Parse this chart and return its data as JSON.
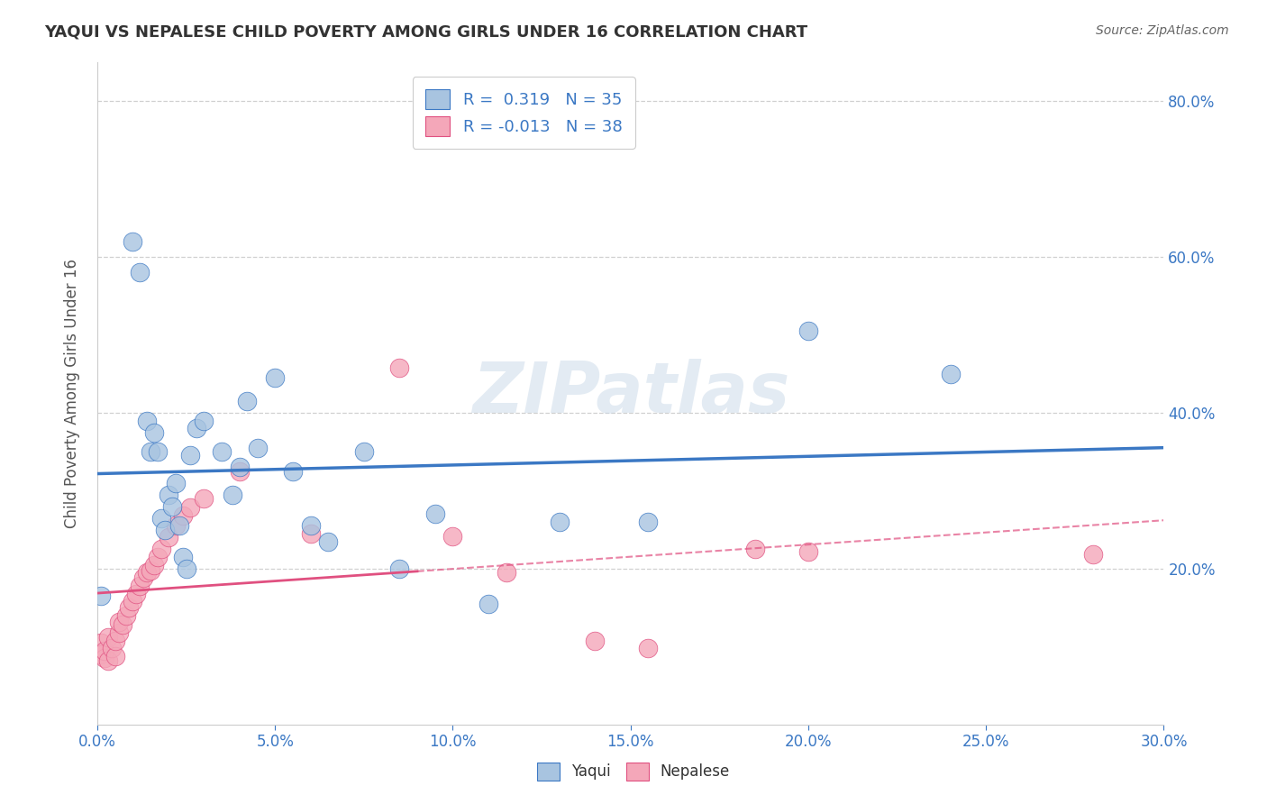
{
  "title": "YAQUI VS NEPALESE CHILD POVERTY AMONG GIRLS UNDER 16 CORRELATION CHART",
  "source": "Source: ZipAtlas.com",
  "ylabel": "Child Poverty Among Girls Under 16",
  "xlim": [
    0.0,
    0.3
  ],
  "ylim": [
    0.0,
    0.85
  ],
  "xticks": [
    0.0,
    0.05,
    0.1,
    0.15,
    0.2,
    0.25,
    0.3
  ],
  "yticks": [
    0.2,
    0.4,
    0.6,
    0.8
  ],
  "ytick_labels": [
    "20.0%",
    "40.0%",
    "60.0%",
    "80.0%"
  ],
  "xtick_labels": [
    "0.0%",
    "5.0%",
    "10.0%",
    "15.0%",
    "20.0%",
    "25.0%",
    "30.0%"
  ],
  "watermark": "ZIPatlas",
  "yaqui_color": "#a8c4e0",
  "nepalese_color": "#f4a7b9",
  "yaqui_line_color": "#3b78c4",
  "nepalese_line_color": "#e05080",
  "grid_color": "#d0d0d0",
  "background_color": "#ffffff",
  "yaqui_scatter_x": [
    0.001,
    0.01,
    0.012,
    0.014,
    0.015,
    0.016,
    0.017,
    0.018,
    0.019,
    0.02,
    0.021,
    0.022,
    0.023,
    0.024,
    0.025,
    0.026,
    0.028,
    0.03,
    0.035,
    0.038,
    0.04,
    0.042,
    0.045,
    0.05,
    0.055,
    0.06,
    0.065,
    0.075,
    0.085,
    0.095,
    0.11,
    0.13,
    0.155,
    0.2,
    0.24
  ],
  "yaqui_scatter_y": [
    0.165,
    0.62,
    0.58,
    0.39,
    0.35,
    0.375,
    0.35,
    0.265,
    0.25,
    0.295,
    0.28,
    0.31,
    0.255,
    0.215,
    0.2,
    0.345,
    0.38,
    0.39,
    0.35,
    0.295,
    0.33,
    0.415,
    0.355,
    0.445,
    0.325,
    0.255,
    0.235,
    0.35,
    0.2,
    0.27,
    0.155,
    0.26,
    0.26,
    0.505,
    0.45
  ],
  "nepalese_scatter_x": [
    0.001,
    0.001,
    0.002,
    0.002,
    0.003,
    0.003,
    0.004,
    0.005,
    0.005,
    0.006,
    0.006,
    0.007,
    0.008,
    0.009,
    0.01,
    0.011,
    0.012,
    0.013,
    0.014,
    0.015,
    0.016,
    0.017,
    0.018,
    0.02,
    0.022,
    0.024,
    0.026,
    0.03,
    0.04,
    0.06,
    0.085,
    0.1,
    0.115,
    0.14,
    0.155,
    0.185,
    0.2,
    0.28
  ],
  "nepalese_scatter_y": [
    0.105,
    0.09,
    0.085,
    0.095,
    0.082,
    0.112,
    0.098,
    0.088,
    0.108,
    0.118,
    0.132,
    0.128,
    0.14,
    0.15,
    0.158,
    0.168,
    0.178,
    0.188,
    0.195,
    0.198,
    0.205,
    0.215,
    0.225,
    0.24,
    0.255,
    0.268,
    0.278,
    0.29,
    0.325,
    0.245,
    0.458,
    0.242,
    0.195,
    0.108,
    0.098,
    0.225,
    0.222,
    0.218
  ]
}
